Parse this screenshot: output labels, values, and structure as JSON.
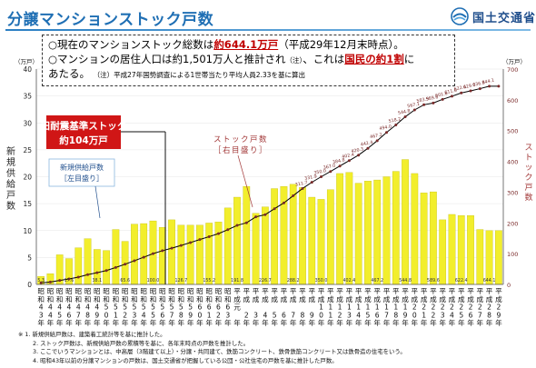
{
  "header": {
    "title": "分譲マンションストック戸数",
    "ministry": "国土交通省"
  },
  "notes": {
    "line1_pre": "○現在のマンションストック総数は",
    "line1_highlight": "約644.1万戸",
    "line1_post": "（平成29年12月末時点）。",
    "line2_pre": "○マンションの居住人口は約1,501万人と推計され",
    "line2_note": "（注）",
    "line2_mid": "、これは",
    "line2_highlight": "国民の約1割",
    "line2_post": "に",
    "line3_pre": "あたる。",
    "line3_note": "（注）平成27年国勢調査による1世帯当たり平均人員2.33を基に算出"
  },
  "annotation": {
    "old_line1": "旧耐震基準ストック",
    "old_line2": "約104万戸",
    "stock_label1": "ストック戸数",
    "stock_label2": "［右目盛り］",
    "supply_label1": "新規供給戸数",
    "supply_label2": "［左目盛り］"
  },
  "colors": {
    "bar": "#f2ee2c",
    "bar_edge": "#b8b400",
    "stock_line": "#000000",
    "stock_marker": "#7a2a2a",
    "old_box": "#d01616",
    "stock_label": "#a33a3a"
  },
  "footnotes": [
    "※ 1. 新規供給戸数は、建築着工統計等を基に推計した。",
    "2. ストック戸数は、新規供給戸数の累積等を基に、各年末時点の戸数を推計した。",
    "3. ここでいうマンションとは、中高層（3階建て以上）・分譲・共同建て、鉄筋コンクリート、鉄骨鉄筋コンクリート又は鉄骨造の住宅をいう。",
    "4. 昭和43年以前の分譲マンションの戸数は、国土交通省が把握している公団・公社住宅の戸数を基に推計した戸数。"
  ],
  "chart_data": {
    "type": "bar",
    "left_axis": {
      "label": "新規供給戸数",
      "unit": "（万戸）",
      "ylim": [
        0,
        40
      ],
      "ticks": [
        0,
        5,
        10,
        15,
        20,
        25,
        30,
        35,
        40
      ]
    },
    "right_axis": {
      "label": "ストック戸数",
      "unit": "（万戸）",
      "ylim": [
        0,
        700
      ],
      "ticks": [
        0,
        100,
        200,
        300,
        400,
        500,
        600,
        700
      ]
    },
    "categories": [
      "昭和43年",
      "昭和44年",
      "昭和45年",
      "昭和46年",
      "昭和47年",
      "昭和48年",
      "昭和49年",
      "昭和50年",
      "昭和51年",
      "昭和52年",
      "昭和53年",
      "昭和54年",
      "昭和55年",
      "昭和56年",
      "昭和57年",
      "昭和58年",
      "昭和59年",
      "昭和60年",
      "昭和61年",
      "昭和62年",
      "昭和63年",
      "平成元年",
      "平成2年",
      "平成3年",
      "平成4年",
      "平成5年",
      "平成6年",
      "平成7年",
      "平成8年",
      "平成9年",
      "平成10年",
      "平成11年",
      "平成12年",
      "平成13年",
      "平成14年",
      "平成15年",
      "平成16年",
      "平成17年",
      "平成18年",
      "平成19年",
      "平成20年",
      "平成21年",
      "平成22年",
      "平成23年",
      "平成24年",
      "平成25年",
      "平成26年",
      "平成27年",
      "平成28年",
      "平成29年"
    ],
    "x_top": [
      "昭",
      "昭",
      "昭",
      "昭",
      "昭",
      "昭",
      "昭",
      "昭",
      "昭",
      "昭",
      "昭",
      "昭",
      "昭",
      "昭",
      "昭",
      "昭",
      "昭",
      "昭",
      "昭",
      "昭",
      "昭",
      "平",
      "平",
      "平",
      "平",
      "平",
      "平",
      "平",
      "平",
      "平",
      "平",
      "平",
      "平",
      "平",
      "平",
      "平",
      "平",
      "平",
      "平",
      "平",
      "平",
      "平",
      "平",
      "平",
      "平",
      "平",
      "平",
      "平",
      "平",
      "平"
    ],
    "x_mid": [
      "和",
      "和",
      "和",
      "和",
      "和",
      "和",
      "和",
      "和",
      "和",
      "和",
      "和",
      "和",
      "和",
      "和",
      "和",
      "和",
      "和",
      "和",
      "和",
      "和",
      "和",
      "成",
      "成",
      "成",
      "成",
      "成",
      "成",
      "成",
      "成",
      "成",
      "成",
      "成",
      "成",
      "成",
      "成",
      "成",
      "成",
      "成",
      "成",
      "成",
      "成",
      "成",
      "成",
      "成",
      "成",
      "成",
      "成",
      "成",
      "成",
      "成"
    ],
    "x_d1": [
      "4",
      "4",
      "4",
      "4",
      "4",
      "4",
      "4",
      "5",
      "5",
      "5",
      "5",
      "5",
      "5",
      "5",
      "5",
      "5",
      "5",
      "6",
      "6",
      "6",
      "6",
      "元",
      "",
      "",
      "",
      "",
      "",
      "",
      "",
      "",
      "1",
      "1",
      "1",
      "1",
      "1",
      "1",
      "1",
      "1",
      "1",
      "1",
      "2",
      "2",
      "2",
      "2",
      "2",
      "2",
      "2",
      "2",
      "2",
      "2"
    ],
    "x_d2": [
      "3",
      "4",
      "5",
      "6",
      "7",
      "8",
      "9",
      "0",
      "1",
      "2",
      "3",
      "4",
      "5",
      "6",
      "7",
      "8",
      "9",
      "0",
      "1",
      "2",
      "3",
      "",
      "2",
      "3",
      "4",
      "5",
      "6",
      "7",
      "8",
      "9",
      "0",
      "1",
      "2",
      "3",
      "4",
      "5",
      "6",
      "7",
      "8",
      "9",
      "0",
      "1",
      "2",
      "3",
      "4",
      "5",
      "6",
      "7",
      "8",
      "9"
    ],
    "x_year": [
      "年",
      "年",
      "年",
      "年",
      "年",
      "年",
      "年",
      "年",
      "年",
      "年",
      "年",
      "年",
      "年",
      "年",
      "年",
      "年",
      "年",
      "年",
      "年",
      "年",
      "年",
      "年",
      "年",
      "年",
      "年",
      "年",
      "年",
      "年",
      "年",
      "年",
      "年",
      "年",
      "年",
      "年",
      "年",
      "年",
      "年",
      "年",
      "年",
      "年",
      "年",
      "年",
      "年",
      "年",
      "年",
      "年",
      "年",
      "年",
      "年",
      "年"
    ],
    "series": [
      {
        "name": "新規供給戸数",
        "axis": "left",
        "values": [
          1.5,
          2.0,
          5.5,
          4.8,
          6.8,
          8.5,
          6.5,
          6.3,
          10.2,
          8.0,
          11.2,
          11.3,
          11.8,
          10.6,
          12.0,
          11.0,
          11.0,
          11.0,
          11.4,
          11.6,
          14.2,
          16.2,
          18.2,
          13.2,
          14.4,
          17.8,
          18.2,
          18.6,
          18.0,
          16.2,
          15.8,
          17.6,
          20.6,
          20.8,
          18.8,
          19.2,
          19.4,
          20.0,
          21.0,
          23.2,
          20.6,
          17.0,
          17.2,
          12.0,
          13.0,
          12.8,
          12.8,
          10.2,
          10.0,
          10.0
        ]
      },
      {
        "name": "ストック戸数",
        "axis": "right",
        "values": [
          5.3,
          7.7,
          13.0,
          17.6,
          23.7,
          31.8,
          38.1,
          45.0,
          55.0,
          65.6,
          76.9,
          88.4,
          100.0,
          109.5,
          117.8,
          126.7,
          136.0,
          145.8,
          155.2,
          165.0,
          177.8,
          191.8,
          200.2,
          219.5,
          226.7,
          246.0,
          264.8,
          288.2,
          311.7,
          331.9,
          350.0,
          367.0,
          384.8,
          402.4,
          420.3,
          442.4,
          467.2,
          494.0,
          518.2,
          544.8,
          567.1,
          583.9,
          589.6,
          601.6,
          611.6,
          622.4,
          629.0,
          636.3,
          644.1,
          644.1
        ]
      }
    ],
    "bar_labels": [
      "",
      "",
      "",
      "",
      "",
      "",
      "",
      "",
      "",
      "",
      "",
      "",
      "",
      "",
      "",
      "",
      "",
      "",
      "",
      "",
      "",
      "",
      "",
      "",
      "",
      "",
      "",
      "",
      "",
      "",
      "",
      "",
      "",
      "",
      "",
      "",
      "",
      "",
      "",
      "",
      "",
      "",
      "",
      "",
      "",
      "",
      "",
      "",
      "",
      ""
    ],
    "stock_labels": [
      "5.3",
      "7.7",
      "13.0",
      "17.6",
      "23.7",
      "31.8",
      "38.1",
      "45.0",
      "55.0",
      "65.6",
      "76.9",
      "88.4",
      "100.0",
      "109.5",
      "117.8",
      "126.7",
      "136.0",
      "145.8",
      "155.2",
      "165.0",
      "177.8",
      "191.8",
      "200.2",
      "219.5",
      "226.7",
      "246.0",
      "264.8",
      "288.2",
      "311.7",
      "331.9",
      "350.0",
      "367.0",
      "384.8",
      "402.4",
      "420.3",
      "442.4",
      "467.2",
      "494.0",
      "518.2",
      "544.8",
      "567.1",
      "583.9",
      "589.6",
      "601.6",
      "611.6",
      "622.4",
      "629.0",
      "636.3",
      "644.1",
      ""
    ],
    "bottom_labels": [
      "5.3",
      "7.7",
      "13.0",
      "17.6",
      "23.7",
      "31.8",
      "38.1",
      "45.0",
      "55.0",
      "65.6",
      "76.9",
      "88.4",
      "100.0",
      "109.5",
      "117.8",
      "126.7",
      "136.0",
      "145.8",
      "155.2",
      "165.0",
      "177.8",
      "191.8",
      "200.2",
      "219.5",
      "226.7",
      "246.0",
      "264.8",
      "288.2",
      "311.7",
      "331.9",
      "350.0",
      "367.0",
      "384.8",
      "402.4",
      "420.3",
      "442.4",
      "467.2",
      "494.0",
      "518.2",
      "544.8",
      "567.1",
      "583.9",
      "589.6",
      "601.6",
      "611.6",
      "622.4",
      "629.0",
      "636.3",
      "644.1",
      ""
    ]
  }
}
